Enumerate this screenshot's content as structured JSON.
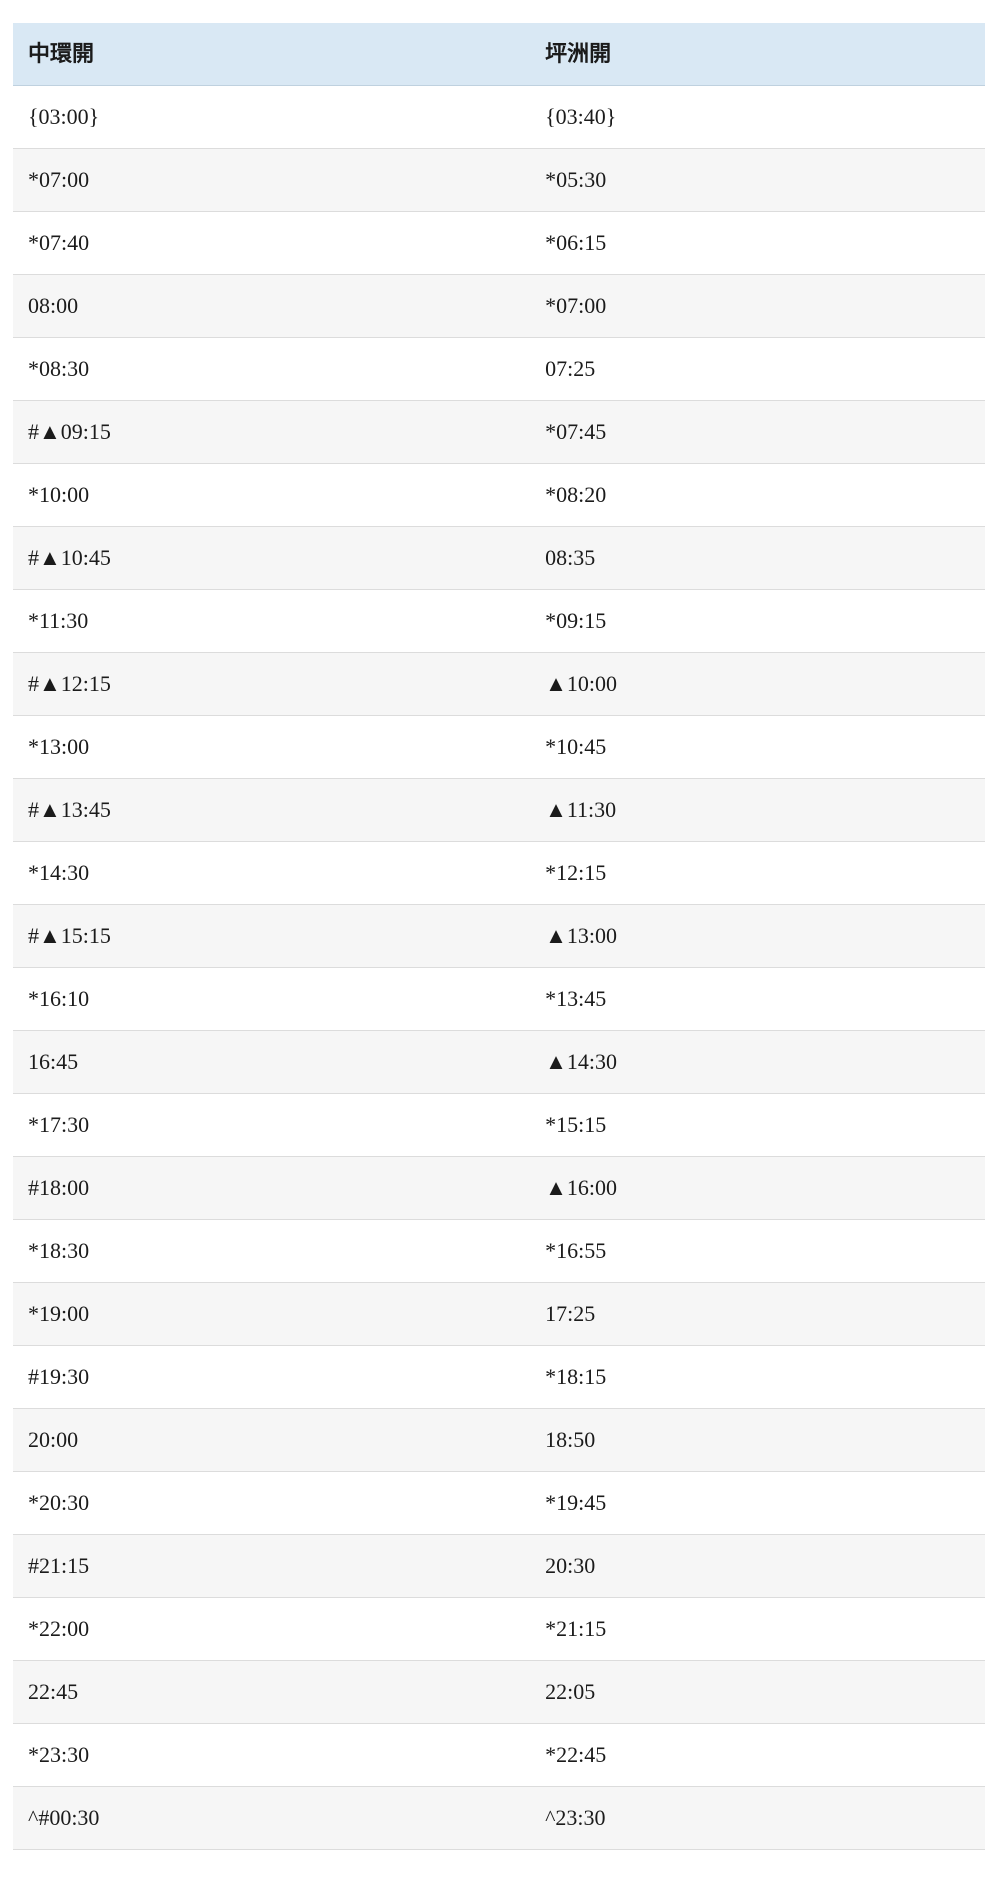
{
  "table": {
    "name": "ferry-timetable",
    "columns": [
      {
        "label": "中環開"
      },
      {
        "label": "坪洲開"
      }
    ],
    "rows": [
      [
        "{03:00}",
        "{03:40}"
      ],
      [
        "*07:00",
        "*05:30"
      ],
      [
        "*07:40",
        "*06:15"
      ],
      [
        "08:00",
        "*07:00"
      ],
      [
        "*08:30",
        "07:25"
      ],
      [
        "#▲09:15",
        "*07:45"
      ],
      [
        "*10:00",
        "*08:20"
      ],
      [
        "#▲10:45",
        "08:35"
      ],
      [
        "*11:30",
        "*09:15"
      ],
      [
        "#▲12:15",
        "▲10:00"
      ],
      [
        "*13:00",
        "*10:45"
      ],
      [
        "#▲13:45",
        "▲11:30"
      ],
      [
        "*14:30",
        "*12:15"
      ],
      [
        "#▲15:15",
        "▲13:00"
      ],
      [
        "*16:10",
        "*13:45"
      ],
      [
        "16:45",
        "▲14:30"
      ],
      [
        "*17:30",
        "*15:15"
      ],
      [
        "#18:00",
        "▲16:00"
      ],
      [
        "*18:30",
        "*16:55"
      ],
      [
        "*19:00",
        "17:25"
      ],
      [
        "#19:30",
        "*18:15"
      ],
      [
        "20:00",
        "18:50"
      ],
      [
        "*20:30",
        "*19:45"
      ],
      [
        "#21:15",
        "20:30"
      ],
      [
        "*22:00",
        "*21:15"
      ],
      [
        "22:45",
        "22:05"
      ],
      [
        "*23:30",
        "*22:45"
      ],
      [
        "^#00:30",
        "^23:30"
      ]
    ],
    "colors": {
      "header_bg": "#d9e8f4",
      "header_border": "#bfd1df",
      "row_bg": "#ffffff",
      "row_alt_bg": "#f6f6f6",
      "row_border": "#dcdcdc",
      "text": "#1b1b1b",
      "page_bg": "#ffffff"
    }
  }
}
